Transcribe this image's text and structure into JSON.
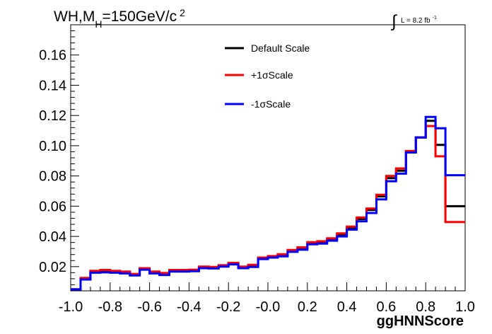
{
  "chart_data": {
    "type": "line",
    "title": {
      "prefix": "WH,M",
      "subscript": "H",
      "middle": "=150GeV/c",
      "superscript": "2"
    },
    "lumi": {
      "integral": "∫",
      "text": "L = 8.2 fb",
      "superscript": "-1"
    },
    "xlabel": "ggHNNScore",
    "ylabel": "",
    "xlim": [
      -1.0,
      1.0
    ],
    "ylim": [
      0.004,
      0.18
    ],
    "bin_edges": [
      -1.0,
      -0.95,
      -0.9,
      -0.85,
      -0.8,
      -0.75,
      -0.7,
      -0.65,
      -0.6,
      -0.55,
      -0.5,
      -0.45,
      -0.4,
      -0.35,
      -0.3,
      -0.25,
      -0.2,
      -0.15,
      -0.1,
      -0.05,
      0.0,
      0.05,
      0.1,
      0.15,
      0.2,
      0.25,
      0.3,
      0.35,
      0.4,
      0.45,
      0.5,
      0.55,
      0.6,
      0.65,
      0.7,
      0.75,
      0.8,
      0.85,
      0.9,
      0.95,
      1.0
    ],
    "x_tick_labels": [
      "-1.0",
      "-0.8",
      "-0.6",
      "-0.4",
      "-0.2",
      "-0.0",
      "0.2",
      "0.4",
      "0.6",
      "0.8",
      "1.0"
    ],
    "x_tick_values": [
      -1.0,
      -0.8,
      -0.6,
      -0.4,
      -0.2,
      0.0,
      0.2,
      0.4,
      0.6,
      0.8,
      1.0
    ],
    "y_tick_labels": [
      "0.02",
      "0.04",
      "0.06",
      "0.08",
      "0.10",
      "0.12",
      "0.14",
      "0.16"
    ],
    "y_tick_values": [
      0.02,
      0.04,
      0.06,
      0.08,
      0.1,
      0.12,
      0.14,
      0.16
    ],
    "series": [
      {
        "name": "Default Scale",
        "color": "#000000",
        "values": [
          0.005,
          0.012,
          0.0165,
          0.017,
          0.0165,
          0.0162,
          0.0145,
          0.0185,
          0.016,
          0.015,
          0.0172,
          0.0172,
          0.0175,
          0.0195,
          0.0192,
          0.0205,
          0.022,
          0.0195,
          0.0205,
          0.0255,
          0.0265,
          0.0275,
          0.0305,
          0.032,
          0.0355,
          0.036,
          0.038,
          0.041,
          0.0455,
          0.0515,
          0.0575,
          0.0665,
          0.0785,
          0.0835,
          0.096,
          0.1055,
          0.1165,
          0.1005,
          0.06,
          0.06
        ]
      },
      {
        "name": "+1σScale",
        "color": "#ff0000",
        "values": [
          0.005,
          0.0125,
          0.0172,
          0.0178,
          0.0172,
          0.0168,
          0.0152,
          0.019,
          0.0168,
          0.0158,
          0.0178,
          0.0178,
          0.018,
          0.02,
          0.0198,
          0.021,
          0.0225,
          0.02,
          0.0212,
          0.026,
          0.027,
          0.0282,
          0.031,
          0.0328,
          0.0362,
          0.0368,
          0.0388,
          0.042,
          0.0465,
          0.0525,
          0.0585,
          0.0675,
          0.08,
          0.085,
          0.0965,
          0.1055,
          0.113,
          0.093,
          0.0495,
          0.0495
        ]
      },
      {
        "name": "-1σScale",
        "color": "#0000ff",
        "values": [
          0.005,
          0.0115,
          0.016,
          0.0162,
          0.016,
          0.0155,
          0.0142,
          0.018,
          0.0155,
          0.0145,
          0.0168,
          0.0168,
          0.017,
          0.019,
          0.0188,
          0.02,
          0.0215,
          0.019,
          0.0198,
          0.025,
          0.026,
          0.0268,
          0.0298,
          0.0312,
          0.0348,
          0.0352,
          0.0372,
          0.04,
          0.0445,
          0.05,
          0.0555,
          0.0645,
          0.0765,
          0.0815,
          0.0955,
          0.1055,
          0.119,
          0.1115,
          0.0805,
          0.0805
        ]
      }
    ],
    "legend_position": "top-center",
    "grid": false
  }
}
